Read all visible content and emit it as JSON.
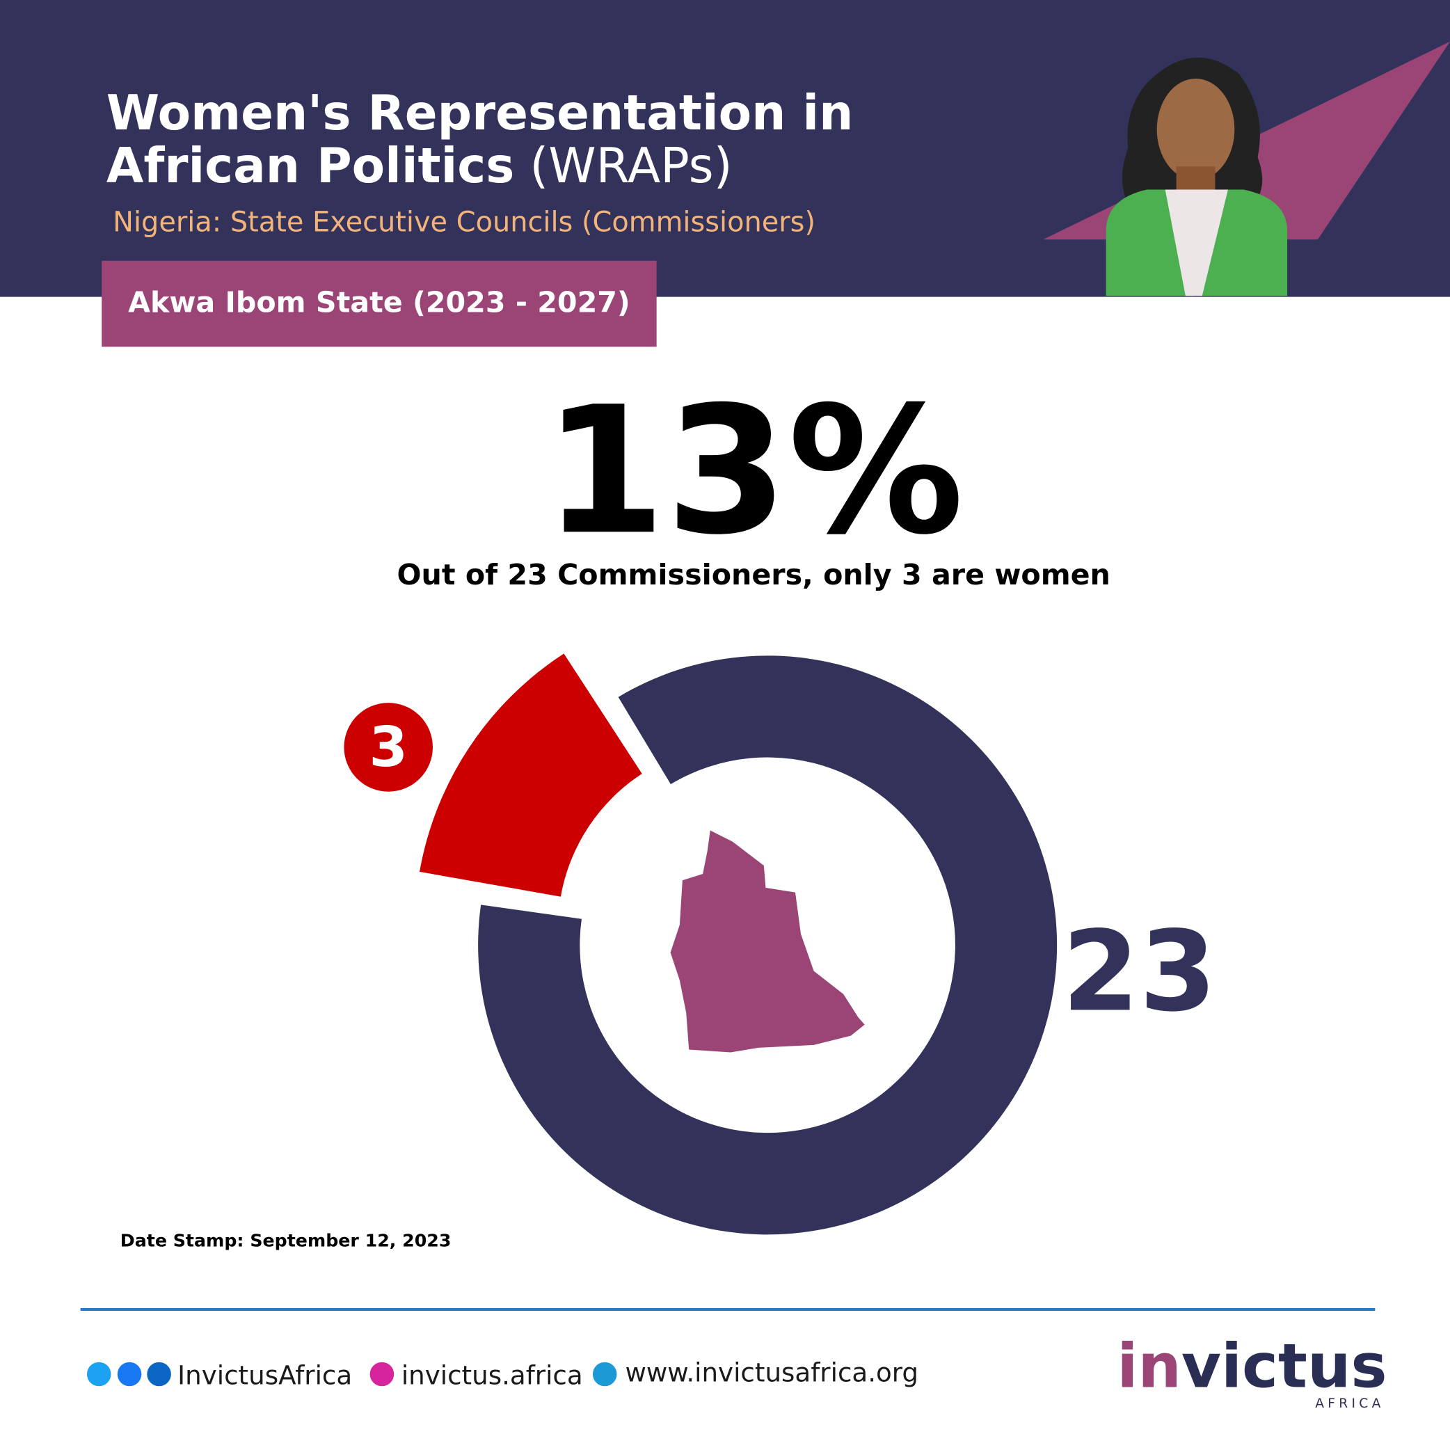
{
  "header": {
    "title_line1": "Women's Representation in",
    "title_line2": "African Politics",
    "title_suffix": "(WRAPs)",
    "subtitle": "Nigeria: State Executive Councils (Commissioners)",
    "badge": "Akwa Ibom State (2023 - 2027)"
  },
  "chart_data": {
    "type": "donut",
    "headline": "13%",
    "caption": "Out of 23 Commissioners, only 3 are women",
    "part": 3,
    "total": 23,
    "part_color": "#cc0000",
    "total_color": "#33325a"
  },
  "date_stamp": "Date Stamp: September 12, 2023",
  "footer": {
    "social": "InvictusAfrica",
    "instagram": "invictus.africa",
    "website": "www.invictusafrica.org",
    "logo_a": "in",
    "logo_b": "victus",
    "logo_sub": "AFRICA"
  }
}
